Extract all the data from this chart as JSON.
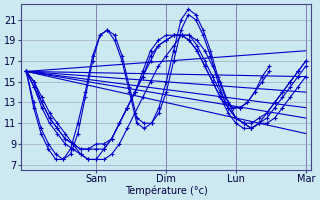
{
  "xlabel": "Température (°c)",
  "bg_color": "#cce8f0",
  "grid_color": "#9999bb",
  "line_color": "#0000cc",
  "ylim": [
    6.5,
    22.5
  ],
  "yticks": [
    7,
    9,
    11,
    13,
    15,
    17,
    19,
    21
  ],
  "day_labels": [
    "Sam",
    "Dim",
    "Lun",
    "Mar"
  ],
  "day_positions": [
    0.25,
    0.5,
    0.75,
    1.0
  ],
  "num_points_detailed": 37,
  "num_points_trend": 4,
  "detailed_series": [
    [
      16.0,
      15.0,
      13.5,
      12.0,
      11.0,
      10.0,
      9.0,
      8.0,
      7.5,
      7.5,
      7.5,
      8.0,
      9.0,
      10.5,
      12.0,
      13.5,
      15.0,
      16.5,
      17.5,
      18.5,
      19.5,
      19.5,
      19.0,
      18.0,
      16.5,
      15.0,
      13.0,
      11.5,
      11.0,
      10.5,
      11.0,
      11.0,
      11.5,
      12.5,
      13.5,
      14.5,
      15.5
    ],
    [
      16.0,
      14.5,
      12.5,
      11.0,
      10.0,
      9.0,
      8.5,
      8.0,
      7.5,
      7.5,
      8.5,
      9.5,
      11.0,
      12.5,
      14.0,
      15.5,
      17.0,
      18.5,
      19.0,
      19.5,
      19.5,
      19.5,
      18.5,
      17.0,
      15.5,
      14.0,
      12.5,
      11.5,
      11.0,
      10.5,
      11.0,
      11.5,
      12.5,
      13.5,
      14.5,
      15.5,
      16.5
    ],
    [
      16.0,
      14.5,
      13.0,
      11.5,
      10.5,
      9.5,
      9.0,
      8.5,
      8.5,
      9.0,
      9.0,
      9.5,
      11.0,
      12.5,
      14.0,
      15.5,
      17.5,
      18.5,
      19.0,
      19.5,
      19.5,
      19.0,
      18.0,
      16.5,
      15.0,
      13.5,
      12.5,
      11.5,
      11.0,
      11.0,
      11.5,
      12.0,
      13.0,
      14.0,
      15.0,
      16.0,
      17.0
    ],
    [
      16.0,
      15.0,
      13.0,
      11.5,
      10.5,
      9.5,
      9.0,
      8.5,
      8.5,
      8.5,
      8.5,
      9.5,
      11.0,
      12.5,
      14.0,
      16.0,
      18.0,
      19.0,
      19.5,
      19.5,
      19.5,
      19.0,
      18.0,
      16.5,
      15.0,
      13.5,
      12.0,
      11.0,
      10.5,
      10.5,
      11.0,
      12.0,
      13.0,
      14.0,
      15.0,
      16.0,
      17.0
    ]
  ],
  "peak_series": [
    [
      16.0,
      12.5,
      10.0,
      8.5,
      7.5,
      7.5,
      8.5,
      11.0,
      14.0,
      17.5,
      19.5,
      20.0,
      19.5,
      17.5,
      14.5,
      11.5,
      11.0,
      11.0,
      12.0,
      14.0,
      17.0,
      20.0,
      21.5,
      21.0,
      19.5,
      17.5,
      15.0,
      13.0,
      12.5,
      12.5,
      13.0,
      14.0,
      15.0,
      16.0
    ],
    [
      16.0,
      13.0,
      10.5,
      9.0,
      8.0,
      7.5,
      8.0,
      10.0,
      13.5,
      17.0,
      19.5,
      20.0,
      19.0,
      17.0,
      14.0,
      11.0,
      10.5,
      11.0,
      12.5,
      15.0,
      18.0,
      21.0,
      22.0,
      21.5,
      20.0,
      18.0,
      15.5,
      13.5,
      12.5,
      12.5,
      13.0,
      14.0,
      15.5,
      16.5
    ]
  ],
  "trend_lines": [
    [
      [
        0,
        16.0
      ],
      [
        1.0,
        18.0
      ]
    ],
    [
      [
        0,
        16.0
      ],
      [
        1.0,
        15.5
      ]
    ],
    [
      [
        0,
        16.0
      ],
      [
        1.0,
        14.0
      ]
    ],
    [
      [
        0,
        16.0
      ],
      [
        1.0,
        12.5
      ]
    ],
    [
      [
        0,
        16.0
      ],
      [
        1.0,
        11.5
      ]
    ],
    [
      [
        0,
        16.0
      ],
      [
        1.0,
        10.0
      ]
    ]
  ]
}
